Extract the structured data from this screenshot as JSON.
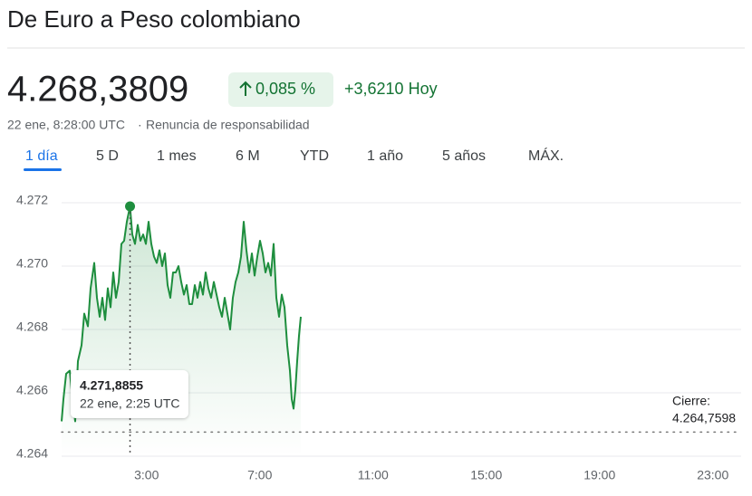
{
  "header": {
    "title": "De Euro a Peso colombiano",
    "price": "4.268,3809",
    "change_pct": "0,085 %",
    "change_abs": "+3,6210 Hoy",
    "timestamp": "22 ene, 8:28:00 UTC",
    "disclaimer": "Renuncia de responsabilidad"
  },
  "tabs": {
    "items": [
      "1 día",
      "5 D",
      "1 mes",
      "6 M",
      "YTD",
      "1 año",
      "5 años",
      "MÁX."
    ],
    "active": 0
  },
  "chart_data": {
    "type": "line",
    "xlim": [
      0,
      24
    ],
    "xticks": [
      {
        "value": 3,
        "label": "3:00"
      },
      {
        "value": 7,
        "label": "7:00"
      },
      {
        "value": 11,
        "label": "11:00"
      },
      {
        "value": 15,
        "label": "15:00"
      },
      {
        "value": 19,
        "label": "19:00"
      },
      {
        "value": 23,
        "label": "23:00"
      }
    ],
    "ylim": [
      4264,
      4272.7
    ],
    "yticks": [
      {
        "value": 4264,
        "label": "4.264"
      },
      {
        "value": 4266,
        "label": "4.266"
      },
      {
        "value": 4268,
        "label": "4.268"
      },
      {
        "value": 4270,
        "label": "4.270"
      },
      {
        "value": 4272,
        "label": "4.272"
      }
    ],
    "grid": true,
    "series": [
      {
        "color": "#1e8e3e",
        "x": [
          0,
          0.064,
          0.16,
          0.288,
          0.384,
          0.48,
          0.576,
          0.704,
          0.8,
          0.928,
          1.024,
          1.152,
          1.248,
          1.344,
          1.44,
          1.536,
          1.632,
          1.728,
          1.824,
          1.92,
          2.016,
          2.112,
          2.208,
          2.304,
          2.4167,
          2.496,
          2.592,
          2.688,
          2.784,
          2.88,
          2.976,
          3.072,
          3.168,
          3.264,
          3.36,
          3.456,
          3.552,
          3.648,
          3.744,
          3.84,
          3.936,
          4.032,
          4.128,
          4.224,
          4.32,
          4.416,
          4.512,
          4.608,
          4.704,
          4.8,
          4.896,
          4.992,
          5.088,
          5.184,
          5.28,
          5.376,
          5.472,
          5.568,
          5.664,
          5.76,
          5.856,
          5.952,
          6.048,
          6.144,
          6.24,
          6.336,
          6.432,
          6.528,
          6.624,
          6.72,
          6.816,
          6.912,
          7.008,
          7.104,
          7.2,
          7.296,
          7.392,
          7.488,
          7.584,
          7.68,
          7.776,
          7.872,
          7.968,
          8.064,
          8.128,
          8.192,
          8.256,
          8.32,
          8.384,
          8.448
        ],
        "values": [
          4265.1,
          4265.8,
          4266.6,
          4266.7,
          4265.8,
          4265.1,
          4267.0,
          4267.5,
          4268.5,
          4268.1,
          4269.3,
          4270.1,
          4269.0,
          4268.4,
          4269.0,
          4268.3,
          4269.3,
          4268.7,
          4269.8,
          4269.0,
          4269.5,
          4270.7,
          4270.8,
          4271.4,
          4271.8855,
          4271.0,
          4270.7,
          4271.3,
          4270.8,
          4271.0,
          4270.7,
          4271.4,
          4270.7,
          4270.3,
          4270.1,
          4270.5,
          4270.0,
          4270.4,
          4269.4,
          4269.0,
          4269.8,
          4269.8,
          4270.0,
          4269.5,
          4269.1,
          4269.4,
          4268.8,
          4268.8,
          4269.4,
          4269.0,
          4269.5,
          4269.1,
          4269.8,
          4269.3,
          4269.0,
          4269.5,
          4269.1,
          4268.7,
          4268.4,
          4269.0,
          4268.5,
          4268.0,
          4269.0,
          4269.5,
          4269.8,
          4270.3,
          4271.4,
          4270.5,
          4269.8,
          4270.4,
          4269.7,
          4270.3,
          4270.8,
          4270.4,
          4269.8,
          4270.1,
          4269.7,
          4270.7,
          4269.0,
          4268.4,
          4269.1,
          4268.7,
          4267.5,
          4266.7,
          4265.8,
          4265.5,
          4266.1,
          4267.0,
          4267.8,
          4268.4
        ]
      }
    ],
    "tooltip": {
      "x": 2.4167,
      "value": 4271.8855,
      "value_label": "4.271,8855",
      "time_label": "22 ene, 2:25 UTC"
    },
    "previous_close": {
      "label": "Cierre:",
      "value": 4264.7598,
      "value_label": "4.264,7598"
    }
  }
}
